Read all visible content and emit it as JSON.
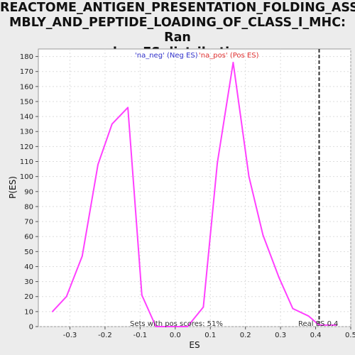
{
  "chart_data": {
    "type": "line",
    "title": "REACTOME_ANTIGEN_PRESENTATION_FOLDING_ASSE\nMBLY_AND_PEPTIDE_LOADING_OF_CLASS_I_MHC: Ran\ndom ES distribution",
    "xlabel": "ES",
    "ylabel": "P(ES)",
    "xlim": [
      -0.39,
      0.5
    ],
    "ylim": [
      0,
      185
    ],
    "x_ticks": [
      "-0.3",
      "-0.2",
      "-0.1",
      "0.0",
      "0.1",
      "0.2",
      "0.3",
      "0.4",
      "0.5"
    ],
    "x_tick_values": [
      -0.3,
      -0.2,
      -0.1,
      0.0,
      0.1,
      0.2,
      0.3,
      0.4,
      0.5
    ],
    "y_ticks": [
      "0",
      "10",
      "20",
      "30",
      "40",
      "50",
      "60",
      "70",
      "80",
      "90",
      "100",
      "110",
      "120",
      "130",
      "140",
      "150",
      "160",
      "170",
      "180"
    ],
    "y_tick_values": [
      0,
      10,
      20,
      30,
      40,
      50,
      60,
      70,
      80,
      90,
      100,
      110,
      120,
      130,
      140,
      150,
      160,
      170,
      180
    ],
    "grid": true,
    "legend": {
      "placement": "top-center",
      "entries": [
        {
          "label": "'na_neg' (Neg ES)",
          "color": "#3333cc"
        },
        {
          "label": "'na_pos' (Pos ES)",
          "color": "#e03030"
        }
      ]
    },
    "series": [
      {
        "color": "#ff40ff",
        "x": [
          -0.35,
          -0.31,
          -0.265,
          -0.22,
          -0.18,
          -0.135,
          -0.095,
          -0.055,
          0.035,
          0.08,
          0.12,
          0.165,
          0.21,
          0.25,
          0.295,
          0.335,
          0.38,
          0.41,
          0.46
        ],
        "y": [
          10,
          20,
          47,
          108,
          135,
          146,
          21,
          0,
          0,
          13,
          109,
          176,
          100,
          61,
          33,
          12,
          7,
          1,
          1
        ]
      }
    ],
    "vline": {
      "x": 0.41,
      "color": "#333333",
      "style": "dashed"
    },
    "annotations": {
      "pos_scores": "Sets with pos scores: 51%",
      "real_es": "Real ES 0.4"
    }
  }
}
